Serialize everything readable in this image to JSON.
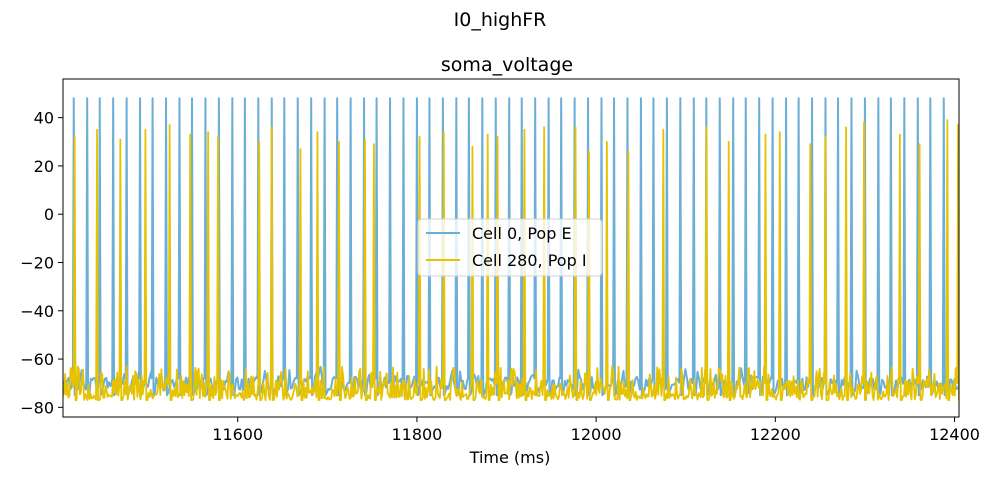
{
  "chart_data": {
    "type": "line",
    "suptitle": "I0_highFR",
    "title": "soma_voltage",
    "xlabel": "Time (ms)",
    "ylabel": "",
    "xlim": [
      11405,
      12405
    ],
    "ylim": [
      -84,
      56
    ],
    "xticks": [
      11600,
      11800,
      12000,
      12200,
      12400
    ],
    "yticks": [
      -80,
      -60,
      -40,
      -20,
      0,
      20,
      40
    ],
    "grid": false,
    "legend_position": "center",
    "series": [
      {
        "name": "Cell 0, Pop E",
        "color": "#6baed6",
        "line_width": 2.0,
        "rest_mV": -70,
        "trough_mV": -75,
        "peak_mV": 48,
        "spike_times_ms": [
          11417,
          11432,
          11446,
          11461,
          11476,
          11491,
          11505,
          11520,
          11535,
          11549,
          11564,
          11579,
          11594,
          11608,
          11623,
          11638,
          11652,
          11667,
          11682,
          11697,
          11711,
          11726,
          11741,
          11755,
          11770,
          11785,
          11800,
          11814,
          11829,
          11844,
          11858,
          11873,
          11888,
          11903,
          11917,
          11932,
          11947,
          11961,
          11976,
          11991,
          12006,
          12020,
          12035,
          12050,
          12064,
          12079,
          12094,
          12109,
          12123,
          12138,
          12153,
          12167,
          12182,
          12197,
          12212,
          12226,
          12241,
          12256,
          12270,
          12285,
          12300,
          12315,
          12329,
          12344,
          12359,
          12373,
          12388
        ]
      },
      {
        "name": "Cell 280, Pop I",
        "color": "#e6c200",
        "line_width": 1.8,
        "rest_mV": -75,
        "trough_mV": -77,
        "spikes": [
          {
            "t": 11418,
            "v": 32
          },
          {
            "t": 11443,
            "v": 35
          },
          {
            "t": 11469,
            "v": 31
          },
          {
            "t": 11497,
            "v": 35
          },
          {
            "t": 11524,
            "v": 37
          },
          {
            "t": 11547,
            "v": 33
          },
          {
            "t": 11567,
            "v": 34
          },
          {
            "t": 11578,
            "v": 32
          },
          {
            "t": 11624,
            "v": 30
          },
          {
            "t": 11638,
            "v": 36
          },
          {
            "t": 11670,
            "v": 27
          },
          {
            "t": 11689,
            "v": 34
          },
          {
            "t": 11713,
            "v": 30
          },
          {
            "t": 11742,
            "v": 31
          },
          {
            "t": 11752,
            "v": 29
          },
          {
            "t": 11803,
            "v": 32
          },
          {
            "t": 11830,
            "v": 34
          },
          {
            "t": 11862,
            "v": 28
          },
          {
            "t": 11879,
            "v": 33
          },
          {
            "t": 11890,
            "v": 32
          },
          {
            "t": 11920,
            "v": 35
          },
          {
            "t": 11942,
            "v": 36
          },
          {
            "t": 11977,
            "v": 36
          },
          {
            "t": 11992,
            "v": 26
          },
          {
            "t": 12012,
            "v": 30
          },
          {
            "t": 12036,
            "v": 26
          },
          {
            "t": 12075,
            "v": 35
          },
          {
            "t": 12123,
            "v": 36
          },
          {
            "t": 12148,
            "v": 30
          },
          {
            "t": 12189,
            "v": 33
          },
          {
            "t": 12205,
            "v": 34
          },
          {
            "t": 12239,
            "v": 29
          },
          {
            "t": 12256,
            "v": 32
          },
          {
            "t": 12279,
            "v": 36
          },
          {
            "t": 12299,
            "v": 38
          },
          {
            "t": 12339,
            "v": 33
          },
          {
            "t": 12361,
            "v": 29
          },
          {
            "t": 12392,
            "v": 39
          },
          {
            "t": 12404,
            "v": 37
          }
        ]
      }
    ]
  }
}
